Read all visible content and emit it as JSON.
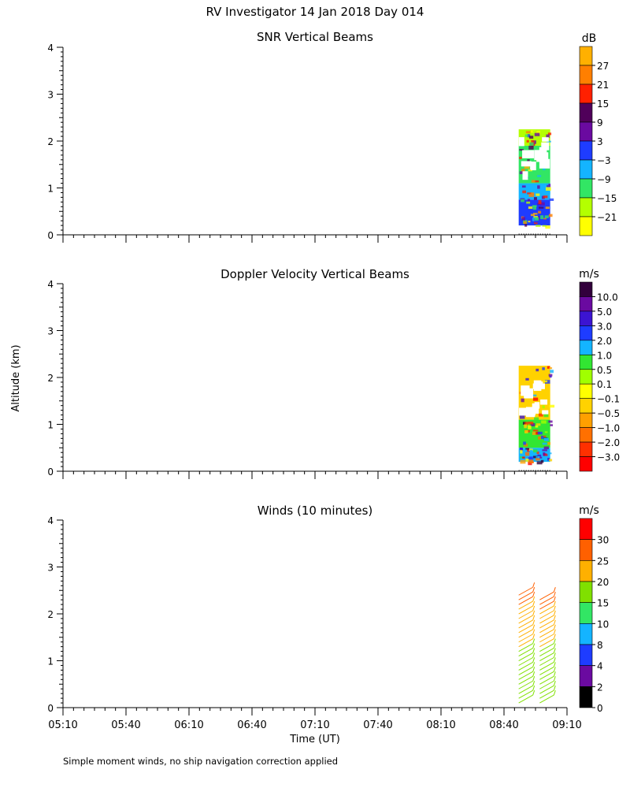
{
  "figure": {
    "title": "RV Investigator  14 Jan 2018 Day 014",
    "ylabel": "Altitude (km)",
    "xlabel": "Time (UT)",
    "footnote": "Simple moment winds, no ship navigation correction applied"
  },
  "chart_data": [
    {
      "type": "heatmap",
      "title": "SNR Vertical Beams",
      "xlabel": "Time (UT)",
      "ylabel": "Altitude (km)",
      "x_ticks": [
        "05:10",
        "05:40",
        "06:10",
        "06:40",
        "07:10",
        "07:40",
        "08:10",
        "08:40",
        "09:10"
      ],
      "xlim": [
        "05:10",
        "09:10"
      ],
      "ylim": [
        0,
        4
      ],
      "y_ticks": [
        0,
        1,
        2,
        3,
        4
      ],
      "colorbar": {
        "unit": "dB",
        "labels": [
          "27",
          "21",
          "15",
          "9",
          "3",
          "−3",
          "−9",
          "−15",
          "−21"
        ],
        "colors": [
          "#ffb000",
          "#ff7f00",
          "#ff2000",
          "#50005a",
          "#6a0aa0",
          "#1e3cff",
          "#14b4ff",
          "#32e664",
          "#b4ff00",
          "#ffff00"
        ]
      },
      "data_extent": {
        "x_start": "08:47",
        "x_end": "09:02",
        "y_bottom_km": 0.2,
        "y_top_km": 2.25
      },
      "layers": [
        {
          "y_bottom_km": 0.2,
          "y_top_km": 0.75,
          "color": "#1e3cff"
        },
        {
          "y_bottom_km": 0.75,
          "y_top_km": 1.1,
          "color": "#14b4ff"
        },
        {
          "y_bottom_km": 1.1,
          "y_top_km": 1.9,
          "color": "#32e664"
        },
        {
          "y_bottom_km": 1.9,
          "y_top_km": 2.25,
          "color": "#b4ff00"
        }
      ]
    },
    {
      "type": "heatmap",
      "title": "Doppler Velocity Vertical Beams",
      "xlabel": "Time (UT)",
      "ylabel": "Altitude (km)",
      "x_ticks": [
        "05:10",
        "05:40",
        "06:10",
        "06:40",
        "07:10",
        "07:40",
        "08:10",
        "08:40",
        "09:10"
      ],
      "xlim": [
        "05:10",
        "09:10"
      ],
      "ylim": [
        0,
        4
      ],
      "y_ticks": [
        0,
        1,
        2,
        3,
        4
      ],
      "colorbar": {
        "unit": "m/s",
        "labels": [
          "10.0",
          "5.0",
          "3.0",
          "2.0",
          "1.0",
          "0.5",
          "0.1",
          "−0.1",
          "−0.5",
          "−1.0",
          "−2.0",
          "−3.0"
        ],
        "colors": [
          "#32003c",
          "#6a0aa0",
          "#3c14d2",
          "#1e3cff",
          "#14b4ff",
          "#32e632",
          "#a0ff00",
          "#ffff00",
          "#ffd200",
          "#ffa000",
          "#ff7000",
          "#ff3000",
          "#ff0000"
        ]
      },
      "data_extent": {
        "x_start": "08:47",
        "x_end": "09:02",
        "y_bottom_km": 0.2,
        "y_top_km": 2.25
      },
      "layers": [
        {
          "y_bottom_km": 0.2,
          "y_top_km": 0.5,
          "color": "#14b4ff"
        },
        {
          "y_bottom_km": 0.5,
          "y_top_km": 1.1,
          "color": "#32e632"
        },
        {
          "y_bottom_km": 1.1,
          "y_top_km": 2.25,
          "color": "#ffd200"
        }
      ]
    },
    {
      "type": "scatter",
      "title": "Winds (10 minutes)",
      "xlabel": "Time (UT)",
      "ylabel": "Altitude (km)",
      "x_ticks": [
        "05:10",
        "05:40",
        "06:10",
        "06:40",
        "07:10",
        "07:40",
        "08:10",
        "08:40",
        "09:10"
      ],
      "xlim": [
        "05:10",
        "09:10"
      ],
      "ylim": [
        0,
        4
      ],
      "y_ticks": [
        0,
        1,
        2,
        3,
        4
      ],
      "colorbar": {
        "unit": "m/s",
        "labels": [
          "30",
          "25",
          "20",
          "15",
          "10",
          "8",
          "4",
          "2",
          "0"
        ],
        "colors": [
          "#ff0000",
          "#ff6000",
          "#ffb000",
          "#80e000",
          "#32e664",
          "#14b4ff",
          "#1e3cff",
          "#6a0aa0",
          "#000000"
        ]
      },
      "profiles": [
        {
          "time": "08:50",
          "y_bottom_km": 0.2,
          "y_top_km": 2.6
        },
        {
          "time": "09:00",
          "y_bottom_km": 0.2,
          "y_top_km": 2.45
        }
      ]
    }
  ]
}
